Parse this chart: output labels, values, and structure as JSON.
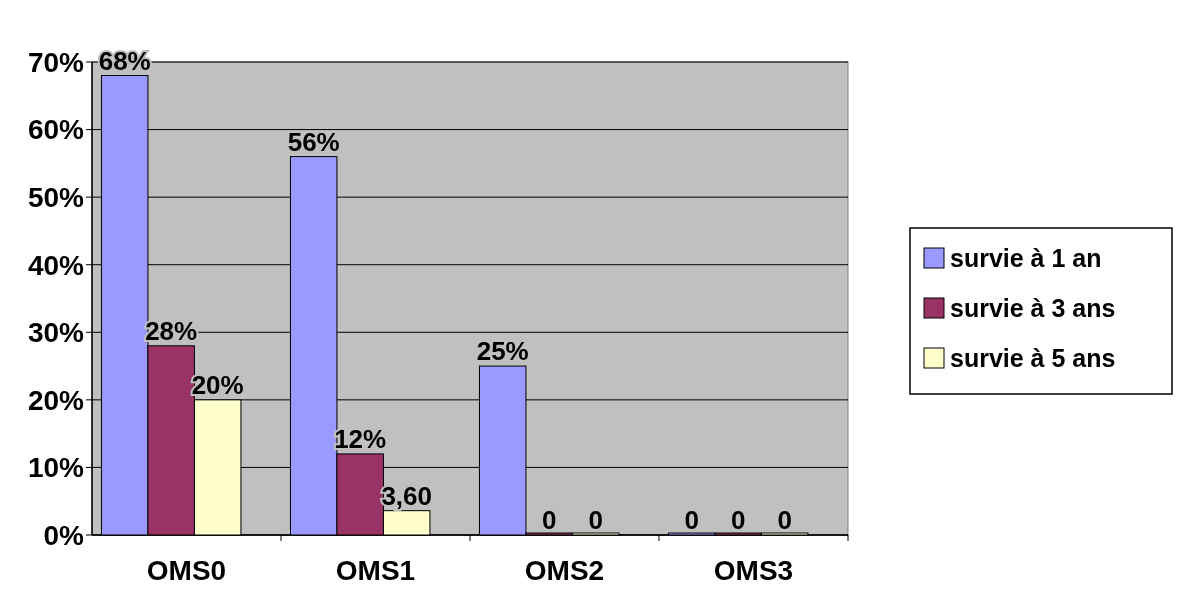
{
  "chart_data": {
    "type": "bar",
    "categories": [
      "OMS0",
      "OMS1",
      "OMS2",
      "OMS3"
    ],
    "series": [
      {
        "name": "survie à 1 an",
        "color": "#9999ff",
        "values": [
          68,
          56,
          25,
          0
        ],
        "value_labels": [
          "68%",
          "56%",
          "25%",
          "0"
        ]
      },
      {
        "name": "survie à 3 ans",
        "color": "#993366",
        "values": [
          28,
          12,
          0,
          0
        ],
        "value_labels": [
          "28%",
          "12%",
          "0",
          "0"
        ]
      },
      {
        "name": "survie à 5 ans",
        "color": "#ffffcc",
        "values": [
          20,
          3.6,
          0,
          0
        ],
        "value_labels": [
          "20%",
          "3,60",
          "0",
          "0"
        ]
      }
    ],
    "ylim": [
      0,
      70
    ],
    "yticks": [
      {
        "value": 0,
        "label": "0%"
      },
      {
        "value": 10,
        "label": "10%"
      },
      {
        "value": 20,
        "label": "20%"
      },
      {
        "value": 30,
        "label": "30%"
      },
      {
        "value": 40,
        "label": "40%"
      },
      {
        "value": 50,
        "label": "50%"
      },
      {
        "value": 60,
        "label": "60%"
      },
      {
        "value": 70,
        "label": "70%"
      }
    ],
    "grid": "y",
    "legend": "right"
  }
}
